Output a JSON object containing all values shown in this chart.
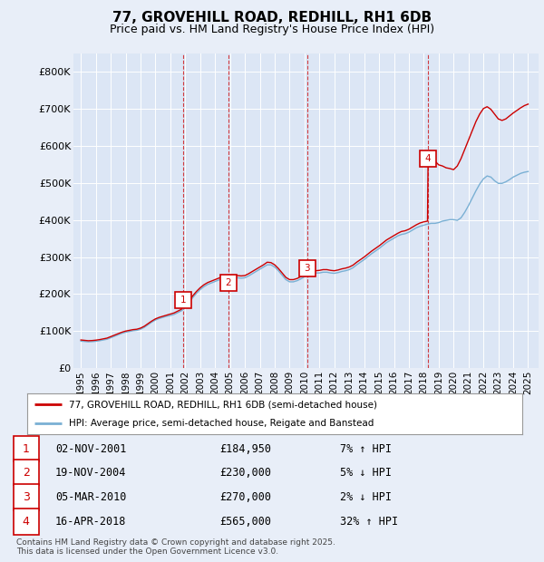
{
  "title": "77, GROVEHILL ROAD, REDHILL, RH1 6DB",
  "subtitle": "Price paid vs. HM Land Registry's House Price Index (HPI)",
  "background_color": "#e8eef8",
  "plot_bg_color": "#dce6f5",
  "ylim": [
    0,
    850000
  ],
  "yticks": [
    0,
    100000,
    200000,
    300000,
    400000,
    500000,
    600000,
    700000,
    800000
  ],
  "ytick_labels": [
    "£0",
    "£100K",
    "£200K",
    "£300K",
    "£400K",
    "£500K",
    "£600K",
    "£700K",
    "£800K"
  ],
  "xlim_start": 1994.5,
  "xlim_end": 2025.7,
  "xtick_years": [
    1995,
    1996,
    1997,
    1998,
    1999,
    2000,
    2001,
    2002,
    2003,
    2004,
    2005,
    2006,
    2007,
    2008,
    2009,
    2010,
    2011,
    2012,
    2013,
    2014,
    2015,
    2016,
    2017,
    2018,
    2019,
    2020,
    2021,
    2022,
    2023,
    2024,
    2025
  ],
  "legend_line1": "77, GROVEHILL ROAD, REDHILL, RH1 6DB (semi-detached house)",
  "legend_line1_color": "#cc0000",
  "legend_line2": "HPI: Average price, semi-detached house, Reigate and Banstead",
  "legend_line2_color": "#7ab0d4",
  "transactions": [
    {
      "num": 1,
      "date": "02-NOV-2001",
      "price": 184950,
      "hpi_diff": "7% ↑ HPI",
      "year_x": 2001.84
    },
    {
      "num": 2,
      "date": "19-NOV-2004",
      "price": 230000,
      "hpi_diff": "5% ↓ HPI",
      "year_x": 2004.88
    },
    {
      "num": 3,
      "date": "05-MAR-2010",
      "price": 270000,
      "hpi_diff": "2% ↓ HPI",
      "year_x": 2010.18
    },
    {
      "num": 4,
      "date": "16-APR-2018",
      "price": 565000,
      "hpi_diff": "32% ↑ HPI",
      "year_x": 2018.29
    }
  ],
  "footnote": "Contains HM Land Registry data © Crown copyright and database right 2025.\nThis data is licensed under the Open Government Licence v3.0.",
  "hpi_data": {
    "years": [
      1995.0,
      1995.25,
      1995.5,
      1995.75,
      1996.0,
      1996.25,
      1996.5,
      1996.75,
      1997.0,
      1997.25,
      1997.5,
      1997.75,
      1998.0,
      1998.25,
      1998.5,
      1998.75,
      1999.0,
      1999.25,
      1999.5,
      1999.75,
      2000.0,
      2000.25,
      2000.5,
      2000.75,
      2001.0,
      2001.25,
      2001.5,
      2001.75,
      2002.0,
      2002.25,
      2002.5,
      2002.75,
      2003.0,
      2003.25,
      2003.5,
      2003.75,
      2004.0,
      2004.25,
      2004.5,
      2004.75,
      2005.0,
      2005.25,
      2005.5,
      2005.75,
      2006.0,
      2006.25,
      2006.5,
      2006.75,
      2007.0,
      2007.25,
      2007.5,
      2007.75,
      2008.0,
      2008.25,
      2008.5,
      2008.75,
      2009.0,
      2009.25,
      2009.5,
      2009.75,
      2010.0,
      2010.25,
      2010.5,
      2010.75,
      2011.0,
      2011.25,
      2011.5,
      2011.75,
      2012.0,
      2012.25,
      2012.5,
      2012.75,
      2013.0,
      2013.25,
      2013.5,
      2013.75,
      2014.0,
      2014.25,
      2014.5,
      2014.75,
      2015.0,
      2015.25,
      2015.5,
      2015.75,
      2016.0,
      2016.25,
      2016.5,
      2016.75,
      2017.0,
      2017.25,
      2017.5,
      2017.75,
      2018.0,
      2018.25,
      2018.5,
      2018.75,
      2019.0,
      2019.25,
      2019.5,
      2019.75,
      2020.0,
      2020.25,
      2020.5,
      2020.75,
      2021.0,
      2021.25,
      2021.5,
      2021.75,
      2022.0,
      2022.25,
      2022.5,
      2022.75,
      2023.0,
      2023.25,
      2023.5,
      2023.75,
      2024.0,
      2024.25,
      2024.5,
      2024.75,
      2025.0
    ],
    "values": [
      73000,
      72000,
      71000,
      71500,
      72500,
      74000,
      76000,
      78000,
      82000,
      86000,
      90000,
      94000,
      97000,
      99000,
      101000,
      102000,
      105000,
      110000,
      117000,
      124000,
      130000,
      134000,
      137000,
      140000,
      142000,
      145000,
      150000,
      155000,
      164000,
      177000,
      190000,
      202000,
      212000,
      220000,
      226000,
      230000,
      234000,
      238000,
      241000,
      243000,
      244000,
      245000,
      244000,
      243000,
      244000,
      249000,
      255000,
      261000,
      267000,
      273000,
      279000,
      279000,
      273000,
      263000,
      251000,
      239000,
      233000,
      233000,
      236000,
      241000,
      247000,
      251000,
      255000,
      257000,
      257000,
      259000,
      259000,
      257000,
      256000,
      258000,
      261000,
      263000,
      266000,
      271000,
      279000,
      286000,
      293000,
      301000,
      309000,
      316000,
      323000,
      331000,
      339000,
      345000,
      351000,
      357000,
      361000,
      363000,
      367000,
      373000,
      379000,
      383000,
      386000,
      389000,
      391000,
      391000,
      393000,
      397000,
      399000,
      401000,
      401000,
      399000,
      406000,
      421000,
      439000,
      459000,
      479000,
      497000,
      511000,
      519000,
      516000,
      506000,
      499000,
      499000,
      503000,
      509000,
      516000,
      521000,
      526000,
      529000,
      531000
    ]
  },
  "red_line_data": {
    "years": [
      1995.0,
      1995.25,
      1995.5,
      1995.75,
      1996.0,
      1996.25,
      1996.5,
      1996.75,
      1997.0,
      1997.25,
      1997.5,
      1997.75,
      1998.0,
      1998.25,
      1998.5,
      1998.75,
      1999.0,
      1999.25,
      1999.5,
      1999.75,
      2000.0,
      2000.25,
      2000.5,
      2000.75,
      2001.0,
      2001.25,
      2001.5,
      2001.75,
      2001.84,
      2001.84,
      2002.0,
      2002.25,
      2002.5,
      2002.75,
      2003.0,
      2003.25,
      2003.5,
      2003.75,
      2004.0,
      2004.25,
      2004.5,
      2004.75,
      2004.88,
      2004.88,
      2005.0,
      2005.25,
      2005.5,
      2005.75,
      2006.0,
      2006.25,
      2006.5,
      2006.75,
      2007.0,
      2007.25,
      2007.5,
      2007.75,
      2008.0,
      2008.25,
      2008.5,
      2008.75,
      2009.0,
      2009.25,
      2009.5,
      2009.75,
      2010.0,
      2010.18,
      2010.18,
      2010.25,
      2010.5,
      2010.75,
      2011.0,
      2011.25,
      2011.5,
      2011.75,
      2012.0,
      2012.25,
      2012.5,
      2012.75,
      2013.0,
      2013.25,
      2013.5,
      2013.75,
      2014.0,
      2014.25,
      2014.5,
      2014.75,
      2015.0,
      2015.25,
      2015.5,
      2015.75,
      2016.0,
      2016.25,
      2016.5,
      2016.75,
      2017.0,
      2017.25,
      2017.5,
      2017.75,
      2018.0,
      2018.25,
      2018.29,
      2018.29,
      2018.5,
      2018.75,
      2019.0,
      2019.25,
      2019.5,
      2019.75,
      2020.0,
      2020.25,
      2020.5,
      2020.75,
      2021.0,
      2021.25,
      2021.5,
      2021.75,
      2022.0,
      2022.25,
      2022.5,
      2022.75,
      2023.0,
      2023.25,
      2023.5,
      2023.75,
      2024.0,
      2024.25,
      2024.5,
      2024.75,
      2025.0
    ],
    "values": [
      76000,
      75000,
      74000,
      74500,
      75500,
      77000,
      79000,
      81000,
      85000,
      89000,
      93000,
      97000,
      100000,
      102000,
      104000,
      105000,
      108000,
      113000,
      120000,
      127000,
      133000,
      137000,
      140000,
      143000,
      146000,
      149000,
      154000,
      159000,
      184950,
      184950,
      168000,
      181000,
      195000,
      207000,
      217000,
      225000,
      231000,
      235000,
      239000,
      243000,
      247000,
      249000,
      230000,
      230000,
      251000,
      251000,
      250000,
      249000,
      250000,
      255000,
      261000,
      267000,
      273000,
      279000,
      286000,
      285000,
      279000,
      269000,
      257000,
      245000,
      239000,
      239000,
      242000,
      247000,
      253000,
      270000,
      270000,
      257000,
      261000,
      263000,
      264000,
      266000,
      266000,
      264000,
      263000,
      265000,
      268000,
      270000,
      273000,
      278000,
      286000,
      293000,
      300000,
      308000,
      316000,
      323000,
      330000,
      338000,
      346000,
      352000,
      358000,
      364000,
      369000,
      371000,
      375000,
      381000,
      387000,
      392000,
      395000,
      397000,
      565000,
      565000,
      571000,
      559000,
      549000,
      546000,
      541000,
      539000,
      536000,
      546000,
      566000,
      591000,
      616000,
      641000,
      666000,
      686000,
      701000,
      706000,
      699000,
      686000,
      673000,
      669000,
      673000,
      681000,
      689000,
      696000,
      703000,
      709000,
      713000
    ]
  }
}
